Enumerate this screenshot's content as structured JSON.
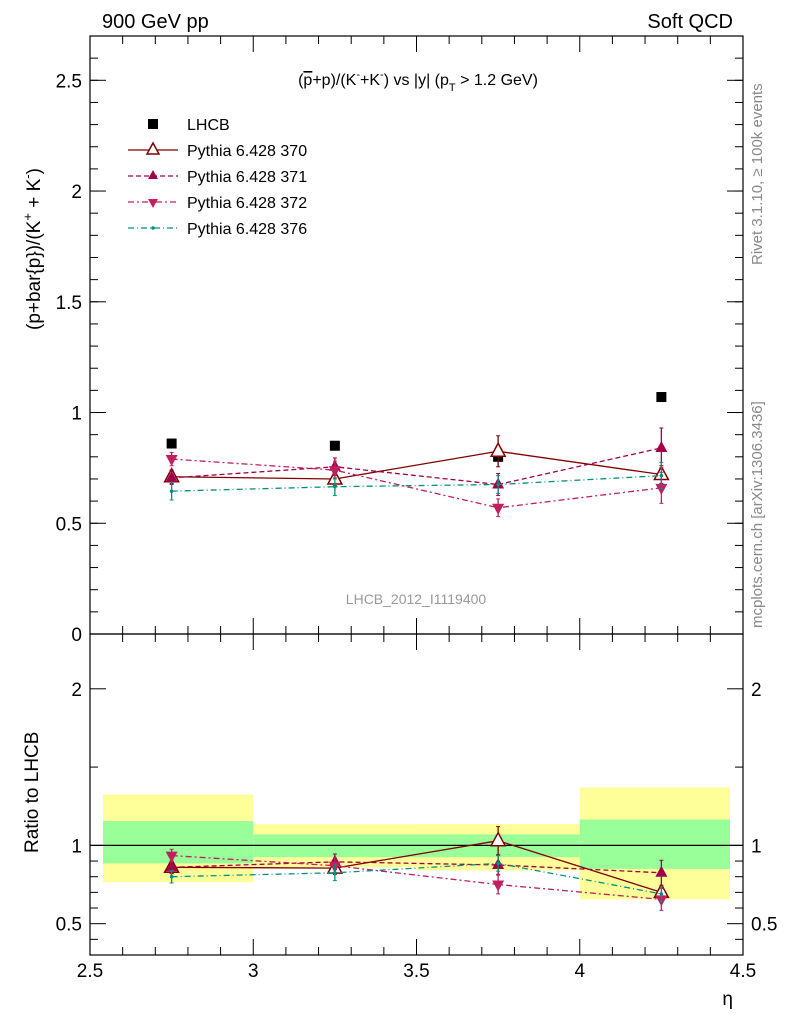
{
  "header": {
    "left": "900 GeV pp",
    "right": "Soft QCD"
  },
  "side": {
    "rivet": "Rivet 3.1.10, ≥ 100k events",
    "mcplots": "mcplots.cern.ch [arXiv:1306.3436]"
  },
  "chart_data": [
    {
      "type": "scatter",
      "title": "(p̄+p)/(K⁻+K⁻) vs |y| (pT > 1.2 GeV)",
      "ylabel": "(p+bar{p})/(K⁺ + K⁻)",
      "watermark": "LHCB_2012_I1119400",
      "xlim": [
        2.5,
        4.5
      ],
      "ylim": [
        0,
        2.7
      ],
      "yticks": [
        "0",
        "0.5",
        "1",
        "1.5",
        "2",
        "2.5"
      ],
      "x": [
        2.75,
        3.25,
        3.75,
        4.25
      ],
      "x_err": 0.25,
      "series": [
        {
          "name": "LHCB",
          "style": "data",
          "color": "#000000",
          "values": [
            0.86,
            0.85,
            0.8,
            1.07
          ]
        },
        {
          "name": "Pythia 6.428 370",
          "style": "open-triangle-up",
          "color": "#800000",
          "values": [
            0.71,
            0.7,
            0.825,
            0.72
          ],
          "err": [
            0.03,
            0.03,
            0.07,
            0.04
          ]
        },
        {
          "name": "Pythia 6.428 371",
          "style": "triangle-up",
          "color": "#a0004a",
          "values": [
            0.705,
            0.755,
            0.675,
            0.84
          ],
          "err": [
            0.03,
            0.04,
            0.05,
            0.09
          ]
        },
        {
          "name": "Pythia 6.428 372",
          "style": "triangle-down",
          "color": "#c02060",
          "values": [
            0.79,
            0.74,
            0.57,
            0.66
          ],
          "err": [
            0.03,
            0.04,
            0.04,
            0.07
          ]
        },
        {
          "name": "Pythia 6.428 376",
          "style": "dot",
          "color": "#009080",
          "values": [
            0.645,
            0.665,
            0.675,
            0.715
          ],
          "err": [
            0.04,
            0.04,
            0.04,
            0.06
          ]
        }
      ]
    },
    {
      "type": "scatter",
      "ylabel": "Ratio to LHCB",
      "xlabel": "η",
      "xlim": [
        2.5,
        4.5
      ],
      "ylim": [
        0.3,
        2.35
      ],
      "yticks": [
        "0.5",
        "1",
        "2"
      ],
      "xticks": [
        "2.5",
        "3",
        "3.5",
        "4",
        "4.5"
      ],
      "bands": [
        {
          "x": [
            2.5,
            3.0
          ],
          "inner": [
            0.885,
            1.155
          ],
          "outer": [
            0.765,
            1.325
          ]
        },
        {
          "x": [
            3.0,
            4.0
          ],
          "inner": [
            0.925,
            1.07
          ],
          "outer": [
            0.86,
            1.135
          ]
        },
        {
          "x": [
            3.5,
            4.0
          ],
          "inner": [
            0.925,
            1.07
          ],
          "outer": [
            0.84,
            1.135
          ]
        },
        {
          "x": [
            4.0,
            4.5
          ],
          "inner": [
            0.85,
            1.165
          ],
          "outer": [
            0.655,
            1.37
          ]
        }
      ],
      "x": [
        2.75,
        3.25,
        3.75,
        4.25
      ],
      "series": [
        {
          "name": "Pythia 6.428 370",
          "style": "open-triangle-up",
          "color": "#800000",
          "values": [
            0.86,
            0.855,
            1.03,
            0.7
          ],
          "err": [
            0.04,
            0.04,
            0.09,
            0.04
          ]
        },
        {
          "name": "Pythia 6.428 371",
          "style": "triangle-up",
          "color": "#a0004a",
          "values": [
            0.86,
            0.895,
            0.875,
            0.825
          ],
          "err": [
            0.04,
            0.05,
            0.06,
            0.08
          ]
        },
        {
          "name": "Pythia 6.428 372",
          "style": "triangle-down",
          "color": "#c02060",
          "values": [
            0.935,
            0.87,
            0.75,
            0.655
          ],
          "err": [
            0.04,
            0.05,
            0.06,
            0.07
          ]
        },
        {
          "name": "Pythia 6.428 376",
          "style": "dot",
          "color": "#009080",
          "values": [
            0.8,
            0.825,
            0.885,
            0.69
          ],
          "err": [
            0.04,
            0.05,
            0.05,
            0.05
          ]
        }
      ]
    }
  ]
}
